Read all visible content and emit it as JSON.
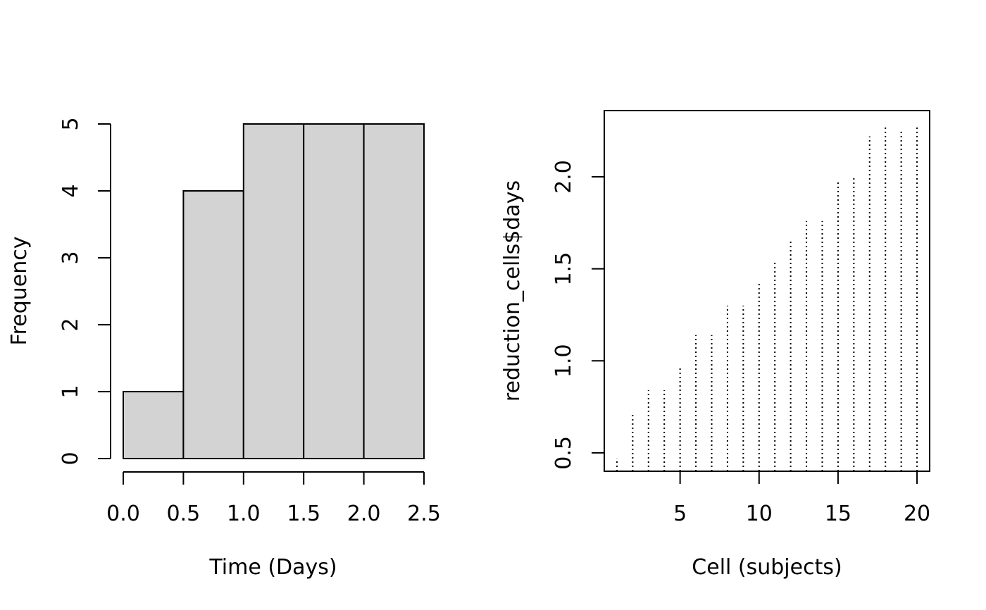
{
  "chart_data": [
    {
      "type": "bar",
      "subtype": "histogram",
      "title": "",
      "xlabel": "Time (Days)",
      "ylabel": "Frequency",
      "bins": [
        [
          0.0,
          0.5
        ],
        [
          0.5,
          1.0
        ],
        [
          1.0,
          1.5
        ],
        [
          1.5,
          2.0
        ],
        [
          2.0,
          2.5
        ]
      ],
      "values": [
        1,
        4,
        5,
        5,
        5
      ],
      "xlim": [
        0,
        2.5
      ],
      "ylim": [
        0,
        5
      ],
      "x_ticks": [
        0.0,
        0.5,
        1.0,
        1.5,
        2.0,
        2.5
      ],
      "x_tick_labels": [
        "0.0",
        "0.5",
        "1.0",
        "1.5",
        "2.0",
        "2.5"
      ],
      "y_ticks": [
        0,
        1,
        2,
        3,
        4,
        5
      ],
      "y_tick_labels": [
        "0",
        "1",
        "2",
        "3",
        "4",
        "5"
      ],
      "bar_color": "#d3d3d3",
      "grid": false
    },
    {
      "type": "line",
      "subtype": "vertical-line plot (histogram-like spikes, dotted)",
      "title": "",
      "xlabel": "Cell (subjects)",
      "ylabel": "reduction_cells$days",
      "x": [
        1,
        2,
        3,
        4,
        5,
        6,
        7,
        8,
        9,
        10,
        11,
        12,
        13,
        14,
        15,
        16,
        17,
        18,
        19,
        20
      ],
      "y": [
        0.47,
        0.72,
        0.84,
        0.84,
        0.96,
        1.14,
        1.14,
        1.3,
        1.3,
        1.42,
        1.54,
        1.66,
        1.76,
        1.76,
        1.97,
        2.0,
        2.22,
        2.28,
        2.26,
        2.28
      ],
      "xlim": [
        0.2,
        20.8
      ],
      "ylim": [
        0.4,
        2.36
      ],
      "x_ticks": [
        5,
        10,
        15,
        20
      ],
      "x_tick_labels": [
        "5",
        "10",
        "15",
        "20"
      ],
      "y_ticks": [
        0.5,
        1.0,
        1.5,
        2.0
      ],
      "y_tick_labels": [
        "0.5",
        "1.0",
        "1.5",
        "2.0"
      ],
      "line_style": "dotted",
      "grid": false
    }
  ]
}
